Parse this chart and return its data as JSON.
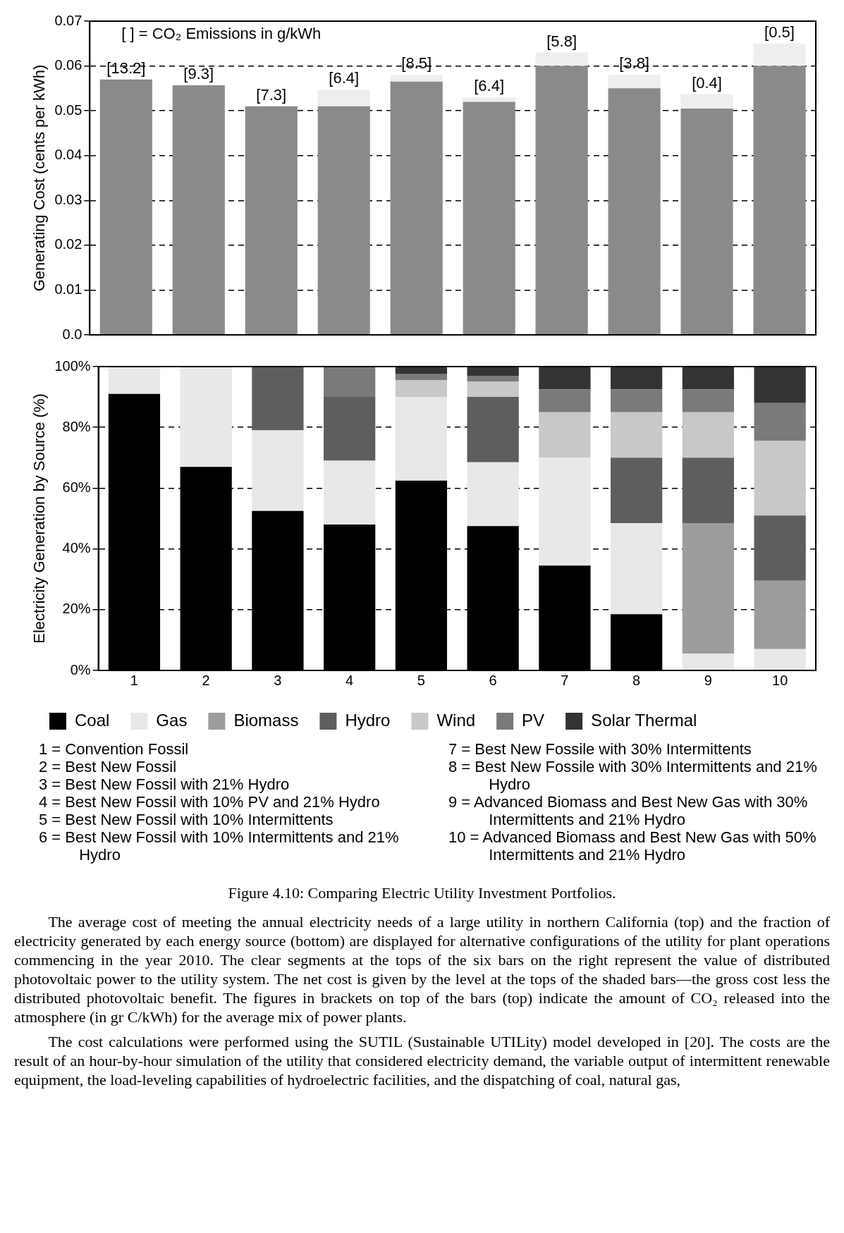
{
  "chart_data": [
    {
      "type": "bar",
      "stacked": true,
      "categories": [
        "1",
        "2",
        "3",
        "4",
        "5",
        "6",
        "7",
        "8",
        "9",
        "10"
      ],
      "ylabel": "Generating Cost (cents per kWh)",
      "series": [
        {
          "color": "#8a8a8a",
          "values": [
            0.057,
            0.0557,
            0.051,
            0.051,
            0.0565,
            0.052,
            0.06,
            0.055,
            0.0505,
            0.06
          ]
        },
        {
          "color": "#eeeeee",
          "values": [
            0,
            0,
            0,
            0.0037,
            0.0015,
            0.001,
            0.003,
            0.003,
            0.0032,
            0.005
          ]
        }
      ],
      "ylim": [
        0,
        0.07
      ],
      "yticks": [
        {
          "value": 0,
          "label": "0.0"
        },
        0.01,
        0.02,
        0.03,
        0.04,
        0.05,
        0.06,
        0.07
      ],
      "grid": "y",
      "legend": false,
      "tick_labels": "y",
      "annotations": [
        "[ ] = CO₂ Emissions in g/kWh",
        {
          "text": "[13.2]",
          "x": "1",
          "y": 0.057
        },
        {
          "text": "[9.3]",
          "x": "2",
          "y": 0.0557
        },
        {
          "text": "[7.3]",
          "x": "3",
          "y": 0.051
        },
        {
          "text": "[6.4]",
          "x": "4",
          "y": 0.0547
        },
        {
          "text": "[8.5]",
          "x": "5",
          "y": 0.058
        },
        {
          "text": "[6.4]",
          "x": "6",
          "y": 0.053
        },
        {
          "text": "[5.8]",
          "x": "7",
          "y": 0.063
        },
        {
          "text": "[3.8]",
          "x": "8",
          "y": 0.058
        },
        {
          "text": "[0.4]",
          "x": "9",
          "y": 0.0537
        },
        {
          "text": "[0.5]",
          "x": "10",
          "y": 0.065
        }
      ]
    },
    {
      "type": "bar",
      "stacked": true,
      "categories": [
        "1",
        "2",
        "3",
        "4",
        "5",
        "6",
        "7",
        "8",
        "9",
        "10"
      ],
      "ylabel": "Electricity Generation by Source (%)",
      "series": [
        {
          "name": "Coal",
          "color": "#000000",
          "values": [
            91,
            67,
            52.5,
            48,
            62.5,
            47.5,
            34.5,
            18.5,
            0,
            0
          ]
        },
        {
          "name": "Gas",
          "color": "#e8e8e8",
          "values": [
            9,
            33,
            26.5,
            21,
            27.5,
            21,
            35.5,
            30,
            5.5,
            7
          ]
        },
        {
          "name": "Biomass",
          "color": "#9c9c9c",
          "values": [
            0,
            0,
            0,
            0,
            0,
            0,
            0,
            0,
            43,
            22.5
          ]
        },
        {
          "name": "Hydro",
          "color": "#5e5e5e",
          "values": [
            0,
            0,
            21,
            21,
            0,
            21.5,
            0,
            21.5,
            21.5,
            21.5
          ]
        },
        {
          "name": "Wind",
          "color": "#c8c8c8",
          "values": [
            0,
            0,
            0,
            0,
            5.5,
            5,
            15,
            15,
            15,
            24.5
          ]
        },
        {
          "name": "PV",
          "color": "#7a7a7a",
          "values": [
            0,
            0,
            0,
            10,
            2,
            2,
            7.5,
            7.5,
            7.5,
            12.5
          ]
        },
        {
          "name": "Solar Thermal",
          "color": "#333333",
          "values": [
            0,
            0,
            0,
            0,
            2.5,
            3,
            7.5,
            7.5,
            7.5,
            12
          ]
        }
      ],
      "ylim": [
        0,
        100
      ],
      "yticks": [
        {
          "value": 0,
          "label": "0%"
        },
        {
          "value": 20,
          "label": "20%"
        },
        {
          "value": 40,
          "label": "40%"
        },
        {
          "value": 60,
          "label": "60%"
        },
        {
          "value": 80,
          "label": "80%"
        },
        {
          "value": 100,
          "label": "100%"
        }
      ],
      "grid": "y",
      "legend": "bottom",
      "annotations": [
        "1 = Convention Fossil",
        "2 = Best New Fossil",
        "3 = Best New Fossil with 21% Hydro",
        "4 = Best New Fossil with 10% PV and 21% Hydro",
        "5 = Best New Fossil with 10% Intermittents",
        "6 = Best New Fossil with 10% Intermittents and 21% Hydro",
        "7 = Best New Fossile with 30% Intermittents",
        "8 = Best New Fossile with 30% Intermittents and 21% Hydro",
        "9 = Advanced Biomass and Best New Gas with 30% Intermittents and 21% Hydro",
        "10 = Advanced Biomass and Best New Gas with 50% Intermittents and 21% Hydro"
      ]
    },
    {
      "type": "other",
      "title": "Figure 4.10:  Comparing Electric Utility Investment Portfolios.",
      "annotations": [
        "The average cost of meeting the annual electricity needs of a large utility in northern California (top) and the fraction of electricity generated by each energy source (bottom) are displayed for alternative configurations of the utility for plant operations commencing in the year 2010.  The clear segments at the tops of the six bars on the right represent the value of distributed photovoltaic power to the utility system.  The net cost is given by the level at the tops of the shaded bars—the gross cost less the distributed photovoltaic benefit.  The figures in brackets on top of the bars (top) indicate the amount of CO₂ released into the atmosphere (in gr C/kWh) for the average mix of power plants.",
        "The cost calculations were performed using the SUTIL (Sustainable UTILity) model developed in [20]. The costs are the result of an hour-by-hour simulation of the utility that considered electricity demand, the variable output of intermittent renewable equipment, the load-leveling capabilities of hydroelectric facilities, and the dispatching of coal, natural gas,"
      ]
    }
  ]
}
